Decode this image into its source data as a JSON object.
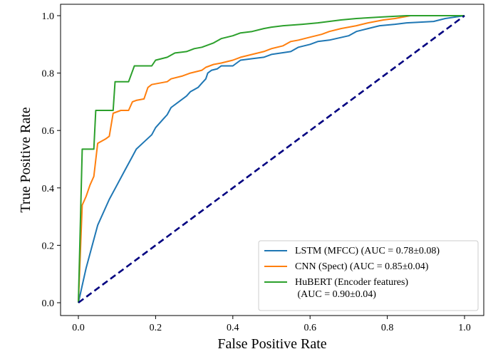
{
  "chart_data": {
    "type": "line",
    "title": "",
    "xlabel": "False Positive Rate",
    "ylabel": "True Positive Rate",
    "xlim": [
      0.0,
      1.0
    ],
    "ylim": [
      0.0,
      1.0
    ],
    "xticks": [
      "0.0",
      "0.2",
      "0.4",
      "0.6",
      "0.8",
      "1.0"
    ],
    "yticks": [
      "0.0",
      "0.2",
      "0.4",
      "0.6",
      "0.8",
      "1.0"
    ],
    "grid": false,
    "legend_position": "lower-right",
    "series": [
      {
        "name": "LSTM (MFCC) (AUC = 0.78±0.08)",
        "color": "#1f77b4",
        "points": [
          [
            0,
            0
          ],
          [
            0.02,
            0.12
          ],
          [
            0.05,
            0.27
          ],
          [
            0.08,
            0.36
          ],
          [
            0.1,
            0.41
          ],
          [
            0.12,
            0.46
          ],
          [
            0.14,
            0.51
          ],
          [
            0.15,
            0.535
          ],
          [
            0.17,
            0.56
          ],
          [
            0.19,
            0.585
          ],
          [
            0.2,
            0.61
          ],
          [
            0.22,
            0.64
          ],
          [
            0.23,
            0.655
          ],
          [
            0.24,
            0.68
          ],
          [
            0.26,
            0.7
          ],
          [
            0.28,
            0.72
          ],
          [
            0.29,
            0.735
          ],
          [
            0.31,
            0.75
          ],
          [
            0.32,
            0.765
          ],
          [
            0.33,
            0.78
          ],
          [
            0.335,
            0.8
          ],
          [
            0.345,
            0.81
          ],
          [
            0.36,
            0.815
          ],
          [
            0.37,
            0.825
          ],
          [
            0.4,
            0.825
          ],
          [
            0.41,
            0.835
          ],
          [
            0.42,
            0.845
          ],
          [
            0.45,
            0.85
          ],
          [
            0.48,
            0.855
          ],
          [
            0.5,
            0.865
          ],
          [
            0.55,
            0.875
          ],
          [
            0.57,
            0.89
          ],
          [
            0.6,
            0.9
          ],
          [
            0.62,
            0.91
          ],
          [
            0.65,
            0.915
          ],
          [
            0.7,
            0.93
          ],
          [
            0.72,
            0.945
          ],
          [
            0.75,
            0.955
          ],
          [
            0.78,
            0.965
          ],
          [
            0.82,
            0.97
          ],
          [
            0.85,
            0.975
          ],
          [
            0.92,
            0.98
          ],
          [
            0.95,
            0.99
          ],
          [
            1.0,
            1.0
          ]
        ]
      },
      {
        "name": "CNN (Spect) (AUC = 0.85±0.04)",
        "color": "#ff7f0e",
        "points": [
          [
            0,
            0
          ],
          [
            0.01,
            0.34
          ],
          [
            0.02,
            0.37
          ],
          [
            0.03,
            0.41
          ],
          [
            0.04,
            0.44
          ],
          [
            0.05,
            0.555
          ],
          [
            0.07,
            0.57
          ],
          [
            0.08,
            0.58
          ],
          [
            0.09,
            0.66
          ],
          [
            0.1,
            0.665
          ],
          [
            0.11,
            0.67
          ],
          [
            0.13,
            0.67
          ],
          [
            0.14,
            0.7
          ],
          [
            0.15,
            0.705
          ],
          [
            0.17,
            0.71
          ],
          [
            0.18,
            0.75
          ],
          [
            0.19,
            0.76
          ],
          [
            0.21,
            0.765
          ],
          [
            0.23,
            0.77
          ],
          [
            0.24,
            0.78
          ],
          [
            0.27,
            0.79
          ],
          [
            0.29,
            0.8
          ],
          [
            0.32,
            0.81
          ],
          [
            0.33,
            0.82
          ],
          [
            0.35,
            0.83
          ],
          [
            0.37,
            0.835
          ],
          [
            0.4,
            0.845
          ],
          [
            0.42,
            0.855
          ],
          [
            0.45,
            0.865
          ],
          [
            0.48,
            0.875
          ],
          [
            0.5,
            0.885
          ],
          [
            0.53,
            0.895
          ],
          [
            0.55,
            0.91
          ],
          [
            0.57,
            0.915
          ],
          [
            0.6,
            0.925
          ],
          [
            0.63,
            0.935
          ],
          [
            0.65,
            0.945
          ],
          [
            0.68,
            0.955
          ],
          [
            0.72,
            0.965
          ],
          [
            0.75,
            0.975
          ],
          [
            0.79,
            0.985
          ],
          [
            0.82,
            0.99
          ],
          [
            0.86,
            1.0
          ],
          [
            0.95,
            1.0
          ],
          [
            1.0,
            1.0
          ]
        ]
      },
      {
        "name": "HuBERT (Encoder features)\n(AUC = 0.90±0.04)",
        "color": "#2ca02c",
        "points": [
          [
            0,
            0
          ],
          [
            0.01,
            0.535
          ],
          [
            0.04,
            0.535
          ],
          [
            0.045,
            0.67
          ],
          [
            0.09,
            0.67
          ],
          [
            0.095,
            0.77
          ],
          [
            0.13,
            0.77
          ],
          [
            0.145,
            0.825
          ],
          [
            0.19,
            0.825
          ],
          [
            0.2,
            0.845
          ],
          [
            0.23,
            0.855
          ],
          [
            0.25,
            0.87
          ],
          [
            0.28,
            0.875
          ],
          [
            0.3,
            0.885
          ],
          [
            0.32,
            0.89
          ],
          [
            0.35,
            0.905
          ],
          [
            0.37,
            0.92
          ],
          [
            0.4,
            0.93
          ],
          [
            0.42,
            0.94
          ],
          [
            0.45,
            0.945
          ],
          [
            0.48,
            0.955
          ],
          [
            0.5,
            0.96
          ],
          [
            0.53,
            0.965
          ],
          [
            0.58,
            0.97
          ],
          [
            0.62,
            0.975
          ],
          [
            0.68,
            0.985
          ],
          [
            0.72,
            0.99
          ],
          [
            0.78,
            0.995
          ],
          [
            0.85,
            1.0
          ],
          [
            1.0,
            1.0
          ]
        ]
      },
      {
        "name": "",
        "color": "#000080",
        "dashed": true,
        "points": [
          [
            0,
            0
          ],
          [
            1,
            1
          ]
        ]
      }
    ]
  }
}
